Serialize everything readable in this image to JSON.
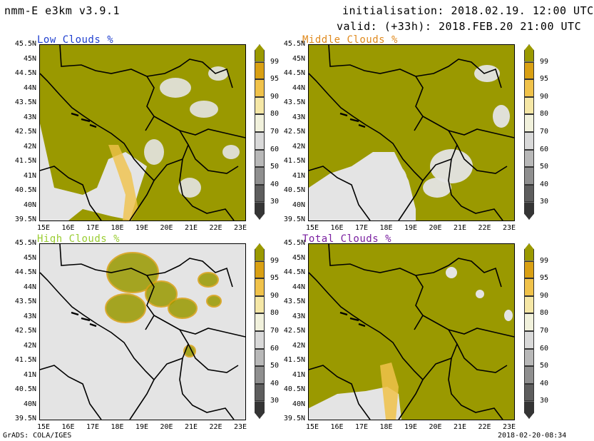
{
  "header": {
    "model": "nmm-E e3km v3.9.1",
    "init": "initialisation: 2018.02.19. 12:00 UTC",
    "valid": "valid: (+33h): 2018.FEB.20 21:00 UTC"
  },
  "colors": {
    "olive": "#9a9900",
    "light_gray": "#e4e4e4",
    "low_title": "#1f3fcf",
    "middle_title": "#e08a1e",
    "high_title": "#9acd32",
    "total_title": "#7a1fa0"
  },
  "panels": [
    {
      "title": "Low Clouds %"
    },
    {
      "title": "Middle Clouds %"
    },
    {
      "title": "High Clouds %"
    },
    {
      "title": "Total Clouds %"
    }
  ],
  "axes": {
    "lat": [
      "45.5N",
      "45N",
      "44.5N",
      "44N",
      "43.5N",
      "43N",
      "42.5N",
      "42N",
      "41.5N",
      "41N",
      "40.5N",
      "40N",
      "39.5N"
    ],
    "lon": [
      "15E",
      "16E",
      "17E",
      "18E",
      "19E",
      "20E",
      "21E",
      "22E",
      "23E"
    ]
  },
  "colorbar": {
    "labels": [
      "99",
      "95",
      "90",
      "80",
      "70",
      "60",
      "50",
      "40",
      "30"
    ],
    "colors": [
      "#9a9900",
      "#d9a013",
      "#f0c24a",
      "#f5e7a6",
      "#f1f1dc",
      "#d9d9d9",
      "#b8b8b8",
      "#8f8f8f",
      "#5e5e5e",
      "#353535"
    ]
  },
  "footer": {
    "left": "GrADS: COLA/IGES",
    "right": "2018-02-20-08:34"
  }
}
